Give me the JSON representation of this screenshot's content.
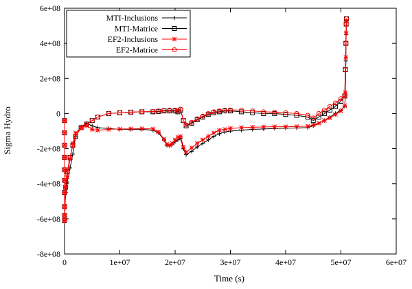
{
  "chart_data": {
    "type": "line",
    "title": "",
    "xlabel": "Time (s)",
    "ylabel": "Sigma Hydro",
    "xlim": [
      0,
      60000000
    ],
    "ylim": [
      -800000000,
      600000000
    ],
    "x_ticks": [
      0,
      10000000,
      20000000,
      30000000,
      40000000,
      50000000,
      60000000
    ],
    "x_tick_labels": [
      "0",
      "1e+07",
      "2e+07",
      "3e+07",
      "4e+07",
      "5e+07",
      "6e+07"
    ],
    "y_ticks": [
      -800000000,
      -600000000,
      -400000000,
      -200000000,
      0,
      200000000,
      400000000,
      600000000
    ],
    "y_tick_labels": [
      "-8e+08",
      "-6e+08",
      "-4e+08",
      "-2e+08",
      "0",
      "2e+08",
      "4e+08",
      "6e+08"
    ],
    "grid": false,
    "legend_position": "top-left",
    "series": [
      {
        "name": "MTI-Inclusions",
        "color": "#000000",
        "marker": "plus",
        "x": [
          0,
          0,
          0,
          0,
          0,
          0,
          0,
          0,
          0,
          0,
          200000,
          500000,
          1000000,
          1500000,
          2000000,
          3000000,
          4000000,
          5000000,
          6000000,
          8000000,
          10000000,
          12000000,
          14000000,
          16000000,
          17000000,
          18000000,
          18500000,
          19000000,
          19500000,
          20000000,
          20500000,
          21000000,
          21500000,
          22000000,
          23000000,
          24000000,
          25000000,
          26000000,
          27000000,
          28000000,
          29000000,
          30000000,
          32000000,
          34000000,
          36000000,
          38000000,
          40000000,
          42000000,
          44000000,
          45000000,
          46000000,
          47000000,
          48000000,
          49000000,
          50000000,
          50700000,
          50800000,
          50900000,
          50950000,
          51000000
        ],
        "y": [
          -40000000,
          -110000000,
          -180000000,
          -250000000,
          -320000000,
          -380000000,
          -450000000,
          -530000000,
          -580000000,
          -610000000,
          -450000000,
          -390000000,
          -310000000,
          -230000000,
          -130000000,
          -75000000,
          -55000000,
          -70000000,
          -80000000,
          -85000000,
          -90000000,
          -90000000,
          -90000000,
          -95000000,
          -110000000,
          -150000000,
          -180000000,
          -185000000,
          -175000000,
          -160000000,
          -150000000,
          -140000000,
          -200000000,
          -235000000,
          -215000000,
          -190000000,
          -170000000,
          -150000000,
          -130000000,
          -115000000,
          -105000000,
          -100000000,
          -95000000,
          -90000000,
          -88000000,
          -85000000,
          -83000000,
          -82000000,
          -80000000,
          -70000000,
          -55000000,
          -40000000,
          -20000000,
          0,
          20000000,
          40000000,
          100000000,
          300000000,
          450000000,
          520000000
        ]
      },
      {
        "name": "MTI-Matrice",
        "color": "#000000",
        "marker": "square",
        "x": [
          0,
          0,
          0,
          0,
          0,
          0,
          0,
          0,
          0,
          0,
          200000,
          500000,
          1000000,
          1500000,
          2000000,
          3000000,
          4000000,
          5000000,
          6000000,
          8000000,
          10000000,
          12000000,
          14000000,
          16000000,
          17000000,
          18000000,
          19000000,
          20000000,
          20500000,
          21000000,
          21500000,
          22000000,
          23000000,
          24000000,
          25000000,
          26000000,
          27000000,
          28000000,
          29000000,
          30000000,
          32000000,
          34000000,
          36000000,
          38000000,
          40000000,
          42000000,
          44000000,
          45000000,
          46000000,
          47000000,
          48000000,
          49000000,
          50000000,
          50700000,
          50800000,
          50900000,
          50950000,
          51000000
        ],
        "y": [
          -40000000,
          -110000000,
          -180000000,
          -250000000,
          -320000000,
          -380000000,
          -450000000,
          -530000000,
          -580000000,
          -610000000,
          -420000000,
          -330000000,
          -250000000,
          -180000000,
          -130000000,
          -80000000,
          -60000000,
          -40000000,
          -20000000,
          0,
          5000000,
          8000000,
          10000000,
          10000000,
          12000000,
          15000000,
          15000000,
          15000000,
          10000000,
          20000000,
          -40000000,
          -70000000,
          -55000000,
          -35000000,
          -20000000,
          -5000000,
          5000000,
          10000000,
          15000000,
          15000000,
          10000000,
          5000000,
          0,
          0,
          -5000000,
          -10000000,
          -20000000,
          -40000000,
          -20000000,
          0,
          20000000,
          40000000,
          70000000,
          100000000,
          250000000,
          400000000,
          510000000,
          540000000
        ]
      },
      {
        "name": "EF2-Inclusions",
        "color": "#ff0000",
        "marker": "star",
        "x": [
          0,
          0,
          0,
          0,
          0,
          0,
          0,
          0,
          0,
          0,
          200000,
          500000,
          1000000,
          1500000,
          2000000,
          3000000,
          4000000,
          5000000,
          6000000,
          8000000,
          10000000,
          12000000,
          14000000,
          16000000,
          17000000,
          18000000,
          18500000,
          19000000,
          19500000,
          20000000,
          20500000,
          21000000,
          21500000,
          22000000,
          23000000,
          24000000,
          25000000,
          26000000,
          27000000,
          28000000,
          29000000,
          30000000,
          32000000,
          34000000,
          36000000,
          38000000,
          40000000,
          42000000,
          44000000,
          45000000,
          46000000,
          47000000,
          48000000,
          49000000,
          50000000,
          50700000,
          50800000,
          50900000,
          50950000,
          51000000
        ],
        "y": [
          -40000000,
          -110000000,
          -180000000,
          -250000000,
          -320000000,
          -380000000,
          -450000000,
          -530000000,
          -580000000,
          -610000000,
          -420000000,
          -360000000,
          -260000000,
          -170000000,
          -110000000,
          -80000000,
          -70000000,
          -90000000,
          -95000000,
          -90000000,
          -88000000,
          -87000000,
          -86000000,
          -88000000,
          -105000000,
          -145000000,
          -175000000,
          -180000000,
          -170000000,
          -150000000,
          -135000000,
          -130000000,
          -190000000,
          -220000000,
          -195000000,
          -170000000,
          -150000000,
          -130000000,
          -110000000,
          -95000000,
          -90000000,
          -85000000,
          -80000000,
          -78000000,
          -76000000,
          -75000000,
          -75000000,
          -74000000,
          -72000000,
          -65000000,
          -55000000,
          -40000000,
          -25000000,
          -5000000,
          15000000,
          45000000,
          120000000,
          320000000,
          460000000,
          530000000
        ]
      },
      {
        "name": "EF2-Matrice",
        "color": "#ff0000",
        "marker": "circle",
        "x": [
          0,
          0,
          0,
          0,
          0,
          0,
          0,
          0,
          0,
          0,
          200000,
          500000,
          1000000,
          1500000,
          2000000,
          3000000,
          4000000,
          5000000,
          6000000,
          8000000,
          10000000,
          12000000,
          14000000,
          16000000,
          17000000,
          18000000,
          19000000,
          20000000,
          20500000,
          21000000,
          21500000,
          22000000,
          23000000,
          24000000,
          25000000,
          26000000,
          27000000,
          28000000,
          29000000,
          30000000,
          32000000,
          34000000,
          36000000,
          38000000,
          40000000,
          42000000,
          44000000,
          45000000,
          46000000,
          47000000,
          48000000,
          49000000,
          50000000,
          50700000,
          50800000,
          50900000,
          50950000,
          51000000
        ],
        "y": [
          -40000000,
          -110000000,
          -180000000,
          -250000000,
          -320000000,
          -380000000,
          -450000000,
          -530000000,
          -580000000,
          -610000000,
          -420000000,
          -330000000,
          -250000000,
          -180000000,
          -130000000,
          -80000000,
          -60000000,
          -40000000,
          -20000000,
          0,
          5000000,
          8000000,
          10000000,
          12000000,
          15000000,
          18000000,
          20000000,
          20000000,
          15000000,
          25000000,
          -40000000,
          -65000000,
          -50000000,
          -30000000,
          -15000000,
          0,
          10000000,
          15000000,
          20000000,
          20000000,
          20000000,
          15000000,
          10000000,
          8000000,
          5000000,
          0,
          -10000000,
          -25000000,
          0,
          20000000,
          40000000,
          60000000,
          85000000,
          100000000,
          250000000,
          400000000,
          510000000,
          540000000
        ]
      }
    ]
  }
}
